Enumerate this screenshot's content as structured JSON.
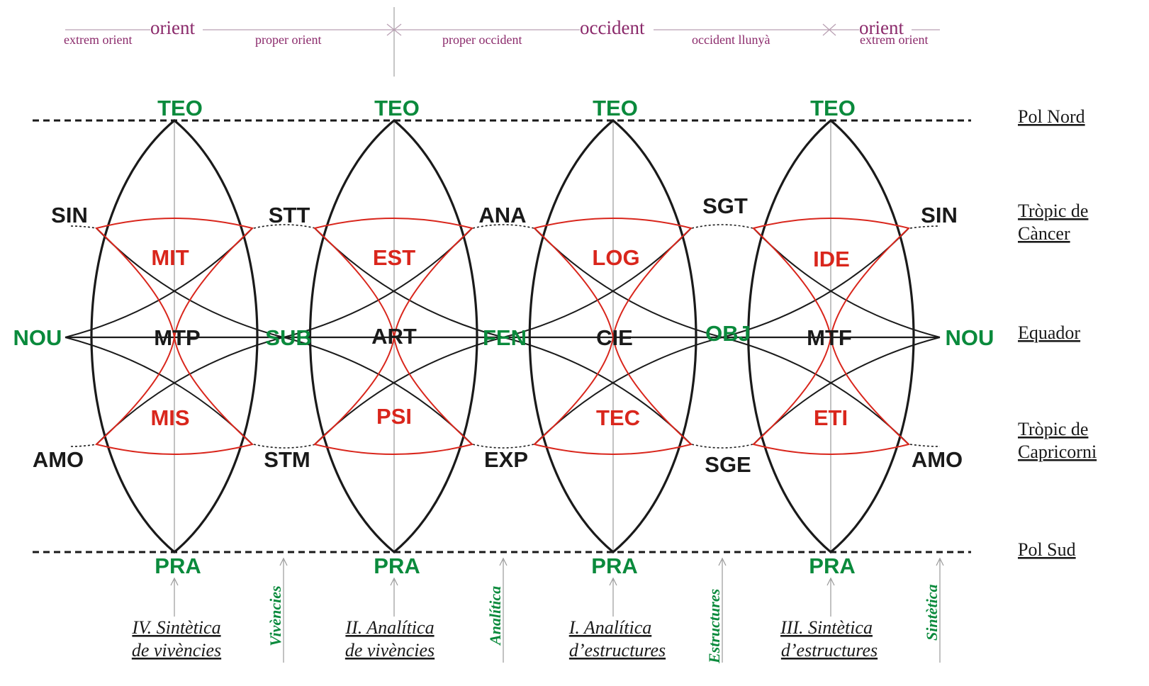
{
  "colors": {
    "green": "#0a8a3c",
    "red": "#d9261c",
    "black": "#1a1a1a",
    "purple": "#8b2a6b",
    "axis_gray": "#9a9a9a"
  },
  "header": {
    "orient_left": "orient",
    "occident": "occident",
    "orient_right": "orient",
    "extrem_orient_left": "extrem orient",
    "proper_orient": "proper orient",
    "proper_occident": "proper occident",
    "occident_llunya": "occident llunyà",
    "extrem_orient_right": "extrem orient"
  },
  "parallels": {
    "pol_nord": "Pol Nord",
    "tropic_cancer_1": "Tròpic de",
    "tropic_cancer_2": "Càncer",
    "equador": "Equador",
    "tropic_capricorn_1": "Tròpic de",
    "tropic_capricorn_2": "Capricorni",
    "pol_sud": "Pol Sud"
  },
  "poles": {
    "teo": [
      "TEO",
      "TEO",
      "TEO",
      "TEO"
    ],
    "pra": [
      "PRA",
      "PRA",
      "PRA",
      "PRA"
    ]
  },
  "equator_nodes": [
    "NOU",
    "SUB",
    "FEN",
    "OBJ",
    "NOU"
  ],
  "centers": [
    "MTP",
    "ART",
    "CIE",
    "MTF"
  ],
  "upper_nodes": [
    "SIN",
    "STT",
    "ANA",
    "SGT",
    "SIN"
  ],
  "lower_nodes": [
    "AMO",
    "STM",
    "EXP",
    "SGE",
    "AMO"
  ],
  "red_upper": [
    "MIT",
    "EST",
    "LOG",
    "IDE"
  ],
  "red_lower": [
    "MIS",
    "PSI",
    "TEC",
    "ETI"
  ],
  "quadrants": [
    {
      "line1": "IV. Sintètica",
      "line2": "de vivències"
    },
    {
      "line1": "II. Analítica",
      "line2": "de vivències"
    },
    {
      "line1": "I. Analítica",
      "line2": "d’estructures"
    },
    {
      "line1": "III. Sintètica",
      "line2": "d’estructures"
    }
  ],
  "vertical_labels": [
    "Vivències",
    "Analítica",
    "Estructures",
    "Sintètica"
  ]
}
